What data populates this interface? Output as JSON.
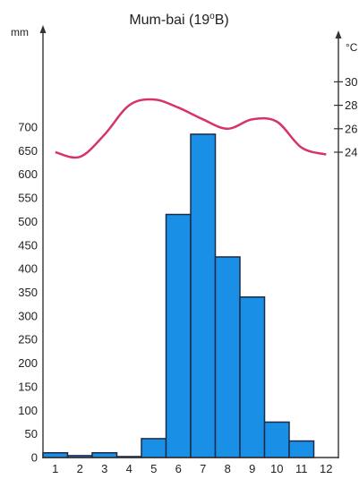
{
  "chart_data": {
    "type": "bar",
    "title": "Mum-bai (19",
    "title_sup": "o",
    "title_tail": "B)",
    "left_unit": "mm",
    "right_unit": "°C",
    "categories": [
      "1",
      "2",
      "3",
      "4",
      "5",
      "6",
      "7",
      "8",
      "9",
      "10",
      "11",
      "12"
    ],
    "precip_mm": [
      10,
      4,
      10,
      2,
      40,
      515,
      685,
      425,
      340,
      75,
      35,
      0
    ],
    "precip_ylim": [
      0,
      700
    ],
    "precip_ticks": [
      "0",
      "50",
      "100",
      "150",
      "200",
      "250",
      "300",
      "350",
      "400",
      "450",
      "500",
      "550",
      "600",
      "650",
      "700"
    ],
    "temperature_c": [
      24,
      23.6,
      25.5,
      28,
      28.5,
      27.8,
      26.8,
      26,
      26.8,
      26.6,
      24.4,
      23.8
    ],
    "temp_ticks": [
      "24",
      "26",
      "28",
      "30"
    ],
    "bar_color": "#1a8fe6",
    "temp_color": "#d6336c"
  }
}
